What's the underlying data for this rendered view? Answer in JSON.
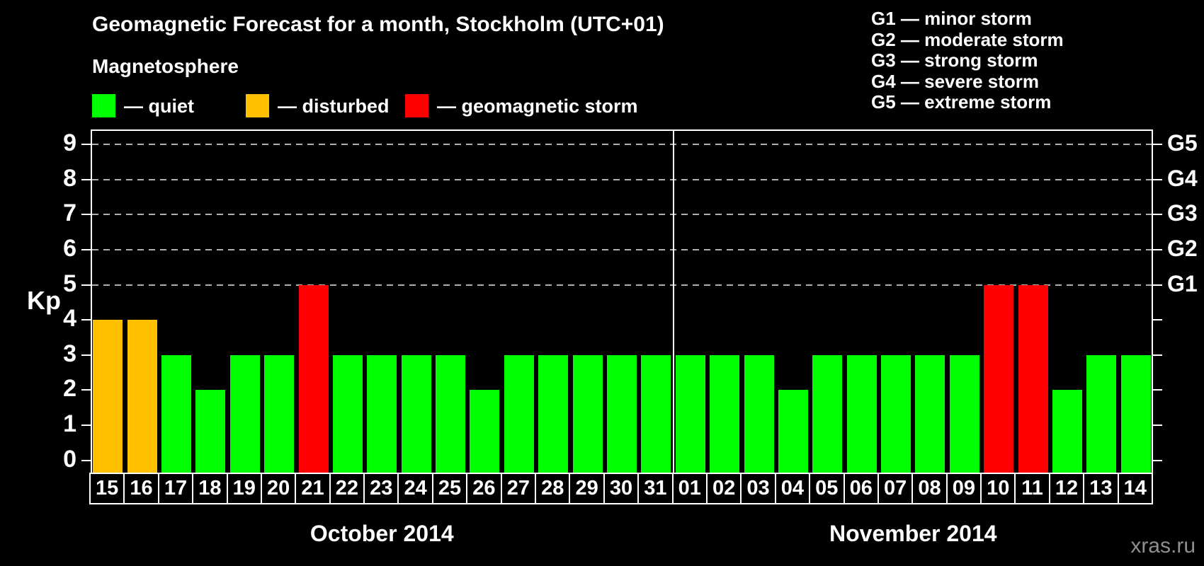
{
  "title": "Geomagnetic Forecast for a month, Stockholm (UTC+01)",
  "subtitle": "Magnetosphere",
  "legend": {
    "items": [
      {
        "state": "quiet",
        "label": "— quiet",
        "color": "#00ff00"
      },
      {
        "state": "disturbed",
        "label": "— disturbed",
        "color": "#ffc000"
      },
      {
        "state": "storm",
        "label": "— geomagnetic storm",
        "color": "#ff0000"
      }
    ]
  },
  "storm_scale_legend": [
    "G1 — minor storm",
    "G2 — moderate storm",
    "G3 — strong storm",
    "G4 — severe storm",
    "G5 — extreme storm"
  ],
  "watermark": "xras.ru",
  "chart_data": {
    "type": "bar",
    "ylabel": "Kp",
    "ylim": [
      0,
      9
    ],
    "yticks": [
      0,
      1,
      2,
      3,
      4,
      5,
      6,
      7,
      8,
      9
    ],
    "gridlines_at": [
      5,
      6,
      7,
      8,
      9
    ],
    "right_axis_labels": {
      "5": "G1",
      "6": "G2",
      "7": "G3",
      "8": "G4",
      "9": "G5"
    },
    "grid": "dashed",
    "legend_position": "top",
    "months": [
      {
        "label": "October 2014",
        "days": [
          {
            "day": "15",
            "kp": 4,
            "state": "disturbed"
          },
          {
            "day": "16",
            "kp": 4,
            "state": "disturbed"
          },
          {
            "day": "17",
            "kp": 3,
            "state": "quiet"
          },
          {
            "day": "18",
            "kp": 2,
            "state": "quiet"
          },
          {
            "day": "19",
            "kp": 3,
            "state": "quiet"
          },
          {
            "day": "20",
            "kp": 3,
            "state": "quiet"
          },
          {
            "day": "21",
            "kp": 5,
            "state": "storm"
          },
          {
            "day": "22",
            "kp": 3,
            "state": "quiet"
          },
          {
            "day": "23",
            "kp": 3,
            "state": "quiet"
          },
          {
            "day": "24",
            "kp": 3,
            "state": "quiet"
          },
          {
            "day": "25",
            "kp": 3,
            "state": "quiet"
          },
          {
            "day": "26",
            "kp": 2,
            "state": "quiet"
          },
          {
            "day": "27",
            "kp": 3,
            "state": "quiet"
          },
          {
            "day": "28",
            "kp": 3,
            "state": "quiet"
          },
          {
            "day": "29",
            "kp": 3,
            "state": "quiet"
          },
          {
            "day": "30",
            "kp": 3,
            "state": "quiet"
          },
          {
            "day": "31",
            "kp": 3,
            "state": "quiet"
          }
        ]
      },
      {
        "label": "November 2014",
        "days": [
          {
            "day": "01",
            "kp": 3,
            "state": "quiet"
          },
          {
            "day": "02",
            "kp": 3,
            "state": "quiet"
          },
          {
            "day": "03",
            "kp": 3,
            "state": "quiet"
          },
          {
            "day": "04",
            "kp": 2,
            "state": "quiet"
          },
          {
            "day": "05",
            "kp": 3,
            "state": "quiet"
          },
          {
            "day": "06",
            "kp": 3,
            "state": "quiet"
          },
          {
            "day": "07",
            "kp": 3,
            "state": "quiet"
          },
          {
            "day": "08",
            "kp": 3,
            "state": "quiet"
          },
          {
            "day": "09",
            "kp": 3,
            "state": "quiet"
          },
          {
            "day": "10",
            "kp": 5,
            "state": "storm"
          },
          {
            "day": "11",
            "kp": 5,
            "state": "storm"
          },
          {
            "day": "12",
            "kp": 2,
            "state": "quiet"
          },
          {
            "day": "13",
            "kp": 3,
            "state": "quiet"
          },
          {
            "day": "14",
            "kp": 3,
            "state": "quiet"
          }
        ]
      }
    ]
  }
}
